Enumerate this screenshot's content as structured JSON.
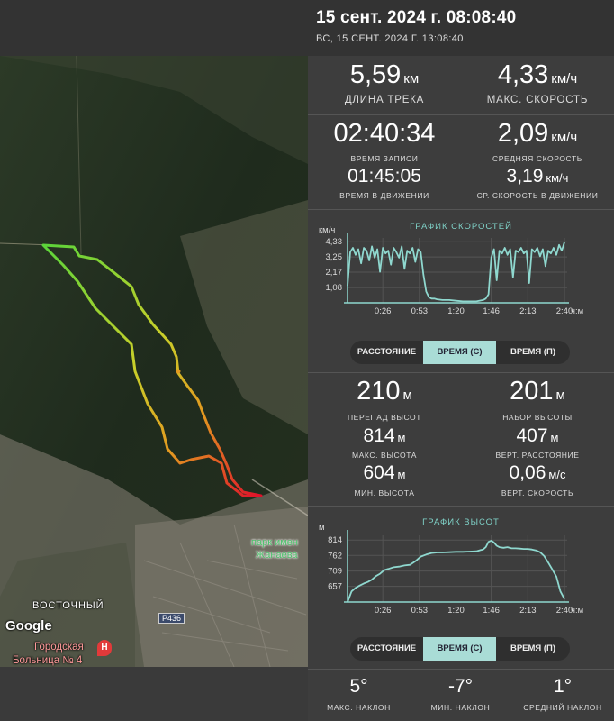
{
  "header": {
    "title": "15 сент. 2024 г. 08:08:40",
    "subtitle": "ВС, 15 СЕНТ. 2024 Г. 13:08:40"
  },
  "map": {
    "labels": {
      "vostochny": "ВОСТОЧНЫЙ",
      "google": "Google",
      "park_line1": "парк имен",
      "park_line2": "Жанаева",
      "road": "Р436",
      "hospital_line1": "Городская",
      "hospital_line2": "Больница № 4",
      "hospital_icon": "H"
    },
    "colors": {
      "track_start": "#5bd43a",
      "track_end": "#e0102a"
    }
  },
  "stats1": {
    "track_length": {
      "value": "5,59",
      "unit": "км",
      "label": "ДЛИНА ТРЕКА"
    },
    "max_speed": {
      "value": "4,33",
      "unit": "км/ч",
      "label": "МАКС. СКОРОСТЬ"
    },
    "record_time": {
      "value": "02:40:34",
      "label": "ВРЕМЯ ЗАПИСИ"
    },
    "avg_speed": {
      "value": "2,09",
      "unit": "км/ч",
      "label": "СРЕДНЯЯ СКОРОСТЬ"
    },
    "moving_time": {
      "value": "01:45:05",
      "label": "ВРЕМЯ В ДВИЖЕНИИ"
    },
    "avg_moving_speed": {
      "value": "3,19",
      "unit": "км/ч",
      "label": "СР. СКОРОСТЬ В ДВИЖЕНИИ"
    }
  },
  "speed_chart": {
    "chart_data": {
      "type": "line",
      "title": "ГРАФИК СКОРОСТЕЙ",
      "ylabel": "км/ч",
      "xlabel": "ч:м",
      "yticks": [
        "4,33",
        "3,25",
        "2,17",
        "1,08"
      ],
      "ytick_values": [
        4.33,
        3.25,
        2.17,
        1.08
      ],
      "xticks": [
        "0:26",
        "0:53",
        "1:20",
        "1:46",
        "2:13",
        "2:40"
      ],
      "xtick_values": [
        26,
        53,
        80,
        106,
        133,
        160
      ],
      "ylim": [
        0,
        4.6
      ],
      "xlim": [
        0,
        162
      ],
      "x": [
        0,
        2,
        4,
        6,
        8,
        10,
        12,
        14,
        16,
        18,
        20,
        22,
        24,
        26,
        28,
        30,
        32,
        34,
        36,
        38,
        40,
        42,
        44,
        46,
        48,
        50,
        52,
        54,
        56,
        58,
        60,
        62,
        64,
        66,
        70,
        75,
        80,
        85,
        90,
        95,
        100,
        102,
        104,
        106,
        108,
        110,
        112,
        114,
        116,
        118,
        120,
        122,
        124,
        126,
        128,
        130,
        132,
        134,
        136,
        138,
        140,
        142,
        144,
        146,
        148,
        150,
        152,
        154,
        156,
        158,
        160
      ],
      "y": [
        1.2,
        3.6,
        3.9,
        3.4,
        3.8,
        2.8,
        3.9,
        3.7,
        3.0,
        4.0,
        3.2,
        3.8,
        2.2,
        3.9,
        3.5,
        3.7,
        2.7,
        3.9,
        3.6,
        3.2,
        4.0,
        2.4,
        3.7,
        3.5,
        3.9,
        2.9,
        3.8,
        3.6,
        2.0,
        0.8,
        0.4,
        0.3,
        0.3,
        0.25,
        0.2,
        0.2,
        0.15,
        0.1,
        0.1,
        0.1,
        0.2,
        0.3,
        0.6,
        3.2,
        3.8,
        1.6,
        3.7,
        3.5,
        3.9,
        3.4,
        3.8,
        1.8,
        3.7,
        3.6,
        3.9,
        3.5,
        3.7,
        1.4,
        3.8,
        3.6,
        3.9,
        3.3,
        3.8,
        2.6,
        3.7,
        3.5,
        3.9,
        3.4,
        4.1,
        3.7,
        4.3
      ],
      "line_color": "#8fd8cf"
    },
    "toggle": {
      "distance": "РАССТОЯНИЕ",
      "time_s": "ВРЕМЯ (С)",
      "time_p": "ВРЕМЯ (П)"
    }
  },
  "stats2": {
    "elev_diff": {
      "value": "210",
      "unit": "м",
      "label": "ПЕРЕПАД ВЫСОТ"
    },
    "elev_gain": {
      "value": "201",
      "unit": "м",
      "label": "НАБОР ВЫСОТЫ"
    },
    "max_elev": {
      "value": "814",
      "unit": "м",
      "label": "МАКС. ВЫСОТА"
    },
    "vert_dist": {
      "value": "407",
      "unit": "м",
      "label": "ВЕРТ. РАССТОЯНИЕ"
    },
    "min_elev": {
      "value": "604",
      "unit": "м",
      "label": "МИН. ВЫСОТА"
    },
    "vert_speed": {
      "value": "0,06",
      "unit": "м/с",
      "label": "ВЕРТ. СКОРОСТЬ"
    }
  },
  "elev_chart": {
    "chart_data": {
      "type": "line",
      "title": "ГРАФИК ВЫСОТ",
      "ylabel": "м",
      "xlabel": "ч:м",
      "yticks": [
        "814",
        "762",
        "709",
        "657"
      ],
      "ytick_values": [
        814,
        762,
        709,
        657
      ],
      "xticks": [
        "0:26",
        "0:53",
        "1:20",
        "1:46",
        "2:13",
        "2:40"
      ],
      "xtick_values": [
        26,
        53,
        80,
        106,
        133,
        160
      ],
      "ylim": [
        604,
        830
      ],
      "xlim": [
        0,
        162
      ],
      "x": [
        0,
        3,
        6,
        9,
        12,
        15,
        18,
        21,
        24,
        27,
        30,
        34,
        38,
        42,
        46,
        50,
        54,
        58,
        62,
        66,
        70,
        75,
        80,
        85,
        90,
        95,
        98,
        100,
        102,
        104,
        106,
        108,
        110,
        112,
        115,
        118,
        121,
        124,
        127,
        130,
        133,
        136,
        139,
        142,
        145,
        148,
        151,
        154,
        157,
        160
      ],
      "y": [
        604,
        640,
        652,
        660,
        667,
        672,
        680,
        692,
        700,
        712,
        716,
        722,
        724,
        728,
        730,
        742,
        758,
        765,
        770,
        772,
        772,
        773,
        774,
        774,
        775,
        776,
        780,
        782,
        790,
        808,
        812,
        806,
        795,
        790,
        788,
        790,
        786,
        786,
        785,
        784,
        784,
        782,
        779,
        773,
        760,
        738,
        715,
        690,
        640,
        614
      ],
      "line_color": "#8fd8cf"
    },
    "toggle": {
      "distance": "РАССТОЯНИЕ",
      "time_s": "ВРЕМЯ (С)",
      "time_p": "ВРЕМЯ (П)"
    }
  },
  "stats3": {
    "max_slope": {
      "value": "5°",
      "label": "МАКС. НАКЛОН"
    },
    "min_slope": {
      "value": "-7°",
      "label": "МИН. НАКЛОН"
    },
    "avg_slope": {
      "value": "1°",
      "label": "СРЕДНИЙ НАКЛОН"
    }
  }
}
